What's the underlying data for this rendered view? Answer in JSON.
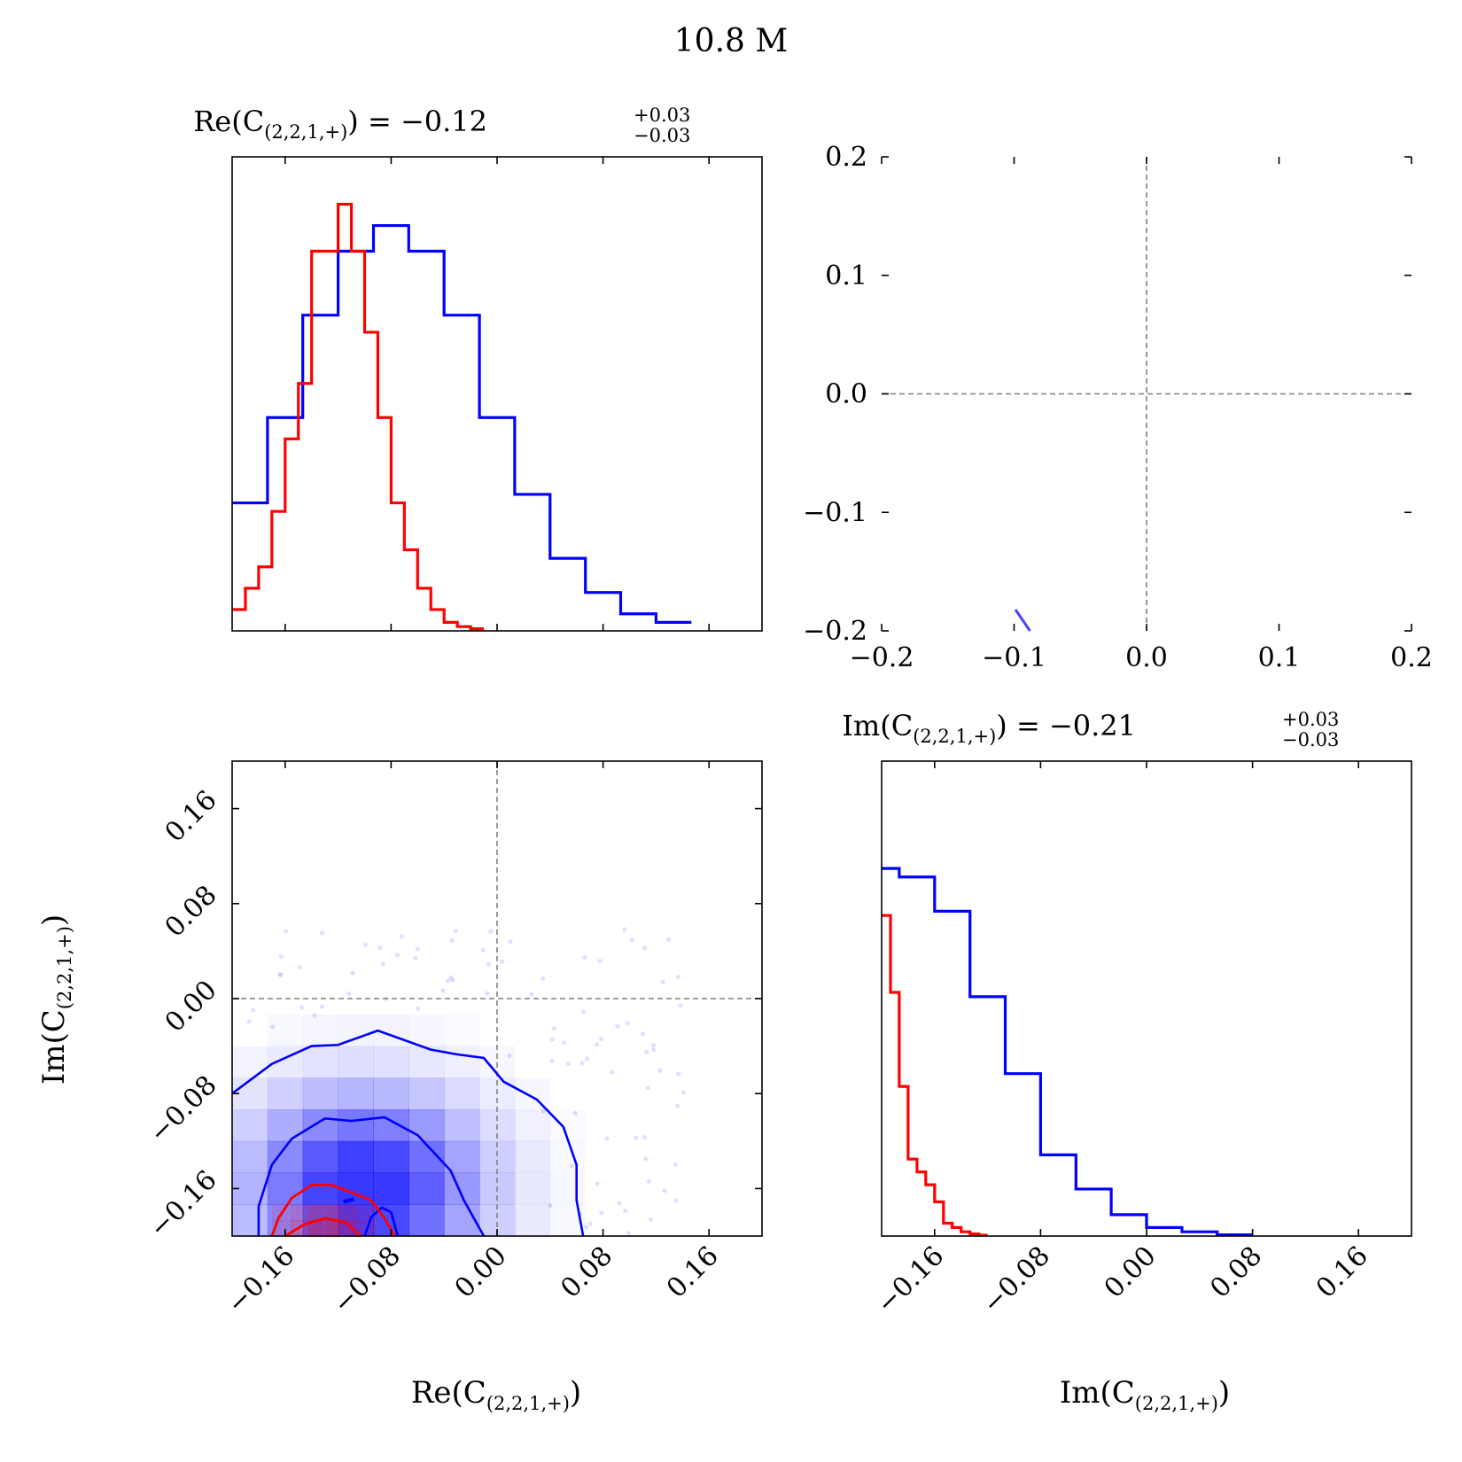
{
  "figure": {
    "title": "10.8 M"
  },
  "colors": {
    "series_a": "#0000ff",
    "series_b": "#ff0000",
    "reference_line": "#808080"
  },
  "chart_data": [
    {
      "type": "histogram",
      "panel": "top-left",
      "title": {
        "label": "Re(C",
        "sub": "(2,2,1,+)",
        "value": ") = −0.12",
        "plus": "+0.03",
        "minus": "−0.03"
      },
      "xlim": [
        -0.2,
        0.2
      ],
      "x_ticks": [
        -0.16,
        -0.08,
        0.0,
        0.08,
        0.16
      ],
      "series": [
        {
          "color": "#0000ff",
          "bin_edges": [
            -0.2,
            -0.1733,
            -0.1467,
            -0.12,
            -0.0933,
            -0.0667,
            -0.04,
            -0.0133,
            0.0133,
            0.04,
            0.0667,
            0.0933,
            0.12,
            0.1467
          ],
          "counts": [
            0.3,
            0.5,
            0.74,
            0.89,
            0.95,
            0.89,
            0.74,
            0.5,
            0.32,
            0.17,
            0.09,
            0.04,
            0.02
          ]
        },
        {
          "color": "#ff0000",
          "bin_edges": [
            -0.2,
            -0.19,
            -0.18,
            -0.17,
            -0.16,
            -0.15,
            -0.14,
            -0.13,
            -0.12,
            -0.11,
            -0.1,
            -0.09,
            -0.08,
            -0.07,
            -0.06,
            -0.05,
            -0.04,
            -0.03,
            -0.02,
            -0.01
          ],
          "counts": [
            0.05,
            0.1,
            0.15,
            0.28,
            0.45,
            0.58,
            0.89,
            0.89,
            1.0,
            0.89,
            0.7,
            0.5,
            0.3,
            0.19,
            0.1,
            0.05,
            0.02,
            0.01,
            0.005
          ]
        }
      ]
    },
    {
      "type": "scatter",
      "panel": "top-right",
      "xlim": [
        -0.2,
        0.2
      ],
      "ylim": [
        -0.2,
        0.2
      ],
      "x_ticks": [
        "−0.2",
        "−0.1",
        "0.0",
        "0.1",
        "0.2"
      ],
      "y_ticks": [
        "0.2",
        "0.1",
        "0.0",
        "−0.1",
        "−0.2"
      ],
      "reference_lines": {
        "x": 0.0,
        "y": 0.0
      },
      "segment": {
        "color": "#4444ff",
        "from": [
          -0.099,
          -0.182
        ],
        "to": [
          -0.088,
          -0.2
        ]
      }
    },
    {
      "type": "heatmap",
      "panel": "bottom-left",
      "xlabel": {
        "label": "Re(C",
        "sub": "(2,2,1,+)",
        "close": ")"
      },
      "ylabel": {
        "label": "Im(C",
        "sub": "(2,2,1,+)",
        "close": ")"
      },
      "xlim": [
        -0.2,
        0.2
      ],
      "ylim": [
        -0.2,
        0.2
      ],
      "x_ticks": [
        "−0.16",
        "−0.08",
        "0.00",
        "0.08",
        "0.16"
      ],
      "y_ticks": [
        "0.16",
        "0.08",
        "0.00",
        "−0.08",
        "−0.16"
      ],
      "reference_lines": {
        "x": 0.0,
        "y": 0.0
      },
      "blue_contours": [
        {
          "level": "outer",
          "points": [
            [
              -0.2,
              -0.08
            ],
            [
              -0.17,
              -0.055
            ],
            [
              -0.14,
              -0.04
            ],
            [
              -0.12,
              -0.039
            ],
            [
              -0.09,
              -0.027
            ],
            [
              -0.07,
              -0.035
            ],
            [
              -0.05,
              -0.043
            ],
            [
              -0.03,
              -0.047
            ],
            [
              -0.01,
              -0.05
            ],
            [
              0.005,
              -0.07
            ],
            [
              0.03,
              -0.085
            ],
            [
              0.05,
              -0.108
            ],
            [
              0.06,
              -0.14
            ],
            [
              0.06,
              -0.17
            ],
            [
              0.065,
              -0.2
            ]
          ]
        },
        {
          "level": "inner",
          "points": [
            [
              -0.18,
              -0.2
            ],
            [
              -0.18,
              -0.175
            ],
            [
              -0.17,
              -0.14
            ],
            [
              -0.155,
              -0.118
            ],
            [
              -0.13,
              -0.101
            ],
            [
              -0.11,
              -0.103
            ],
            [
              -0.085,
              -0.1
            ],
            [
              -0.06,
              -0.115
            ],
            [
              -0.035,
              -0.145
            ],
            [
              -0.025,
              -0.17
            ],
            [
              -0.01,
              -0.2
            ]
          ]
        },
        {
          "level": "core",
          "points": [
            [
              -0.116,
              -0.171
            ],
            [
              -0.108,
              -0.169
            ]
          ]
        }
      ],
      "red_contours": [
        {
          "level": "outer",
          "points": [
            [
              -0.17,
              -0.2
            ],
            [
              -0.165,
              -0.185
            ],
            [
              -0.155,
              -0.168
            ],
            [
              -0.14,
              -0.157
            ],
            [
              -0.125,
              -0.157
            ],
            [
              -0.11,
              -0.163
            ],
            [
              -0.095,
              -0.17
            ],
            [
              -0.085,
              -0.185
            ],
            [
              -0.077,
              -0.2
            ]
          ]
        },
        {
          "level": "inner",
          "points": [
            [
              -0.16,
              -0.2
            ],
            [
              -0.145,
              -0.19
            ],
            [
              -0.13,
              -0.185
            ],
            [
              -0.115,
              -0.188
            ],
            [
              -0.103,
              -0.2
            ]
          ]
        }
      ],
      "blue_inner_loop": [
        [
          -0.1,
          -0.2
        ],
        [
          -0.095,
          -0.184
        ],
        [
          -0.087,
          -0.176
        ],
        [
          -0.08,
          -0.18
        ],
        [
          -0.075,
          -0.2
        ]
      ]
    },
    {
      "type": "histogram",
      "panel": "bottom-right",
      "title": {
        "label": "Im(C",
        "sub": "(2,2,1,+)",
        "value": ") = −0.21",
        "plus": "+0.03",
        "minus": "−0.03"
      },
      "xlabel": {
        "label": "Im(C",
        "sub": "(2,2,1,+)",
        "close": ")"
      },
      "xlim": [
        -0.2,
        0.2
      ],
      "x_ticks": [
        "−0.16",
        "−0.08",
        "0.00",
        "0.08",
        "0.16"
      ],
      "series": [
        {
          "color": "#0000ff",
          "bin_edges": [
            -0.2,
            -0.1867,
            -0.16,
            -0.1333,
            -0.1067,
            -0.08,
            -0.0533,
            -0.0267,
            0.0,
            0.0267,
            0.0533,
            0.08
          ],
          "counts": [
            0.86,
            0.84,
            0.76,
            0.56,
            0.38,
            0.19,
            0.11,
            0.05,
            0.02,
            0.01,
            0.003
          ]
        },
        {
          "color": "#ff0000",
          "bin_edges": [
            -0.2,
            -0.1933,
            -0.1867,
            -0.18,
            -0.1733,
            -0.1667,
            -0.16,
            -0.1533,
            -0.1467,
            -0.14,
            -0.1333,
            -0.1267,
            -0.12
          ],
          "counts": [
            0.75,
            0.57,
            0.35,
            0.18,
            0.15,
            0.12,
            0.08,
            0.03,
            0.02,
            0.01,
            0.005,
            0.002
          ]
        }
      ]
    }
  ]
}
